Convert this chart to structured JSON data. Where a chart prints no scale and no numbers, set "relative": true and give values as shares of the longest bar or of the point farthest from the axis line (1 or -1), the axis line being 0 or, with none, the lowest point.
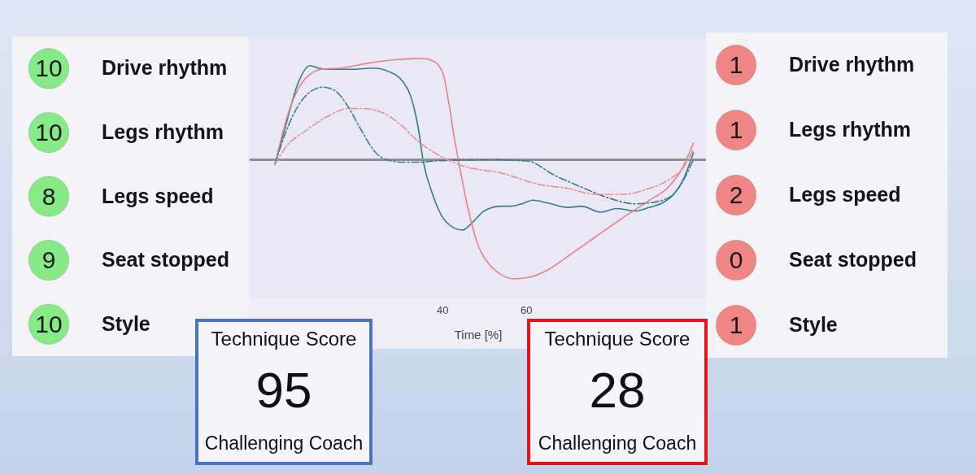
{
  "chart_data": [
    {
      "type": "other",
      "categories": [
        "Drive rhythm",
        "Legs rhythm",
        "Legs speed",
        "Seat stopped",
        "Style"
      ],
      "values": [
        10,
        10,
        8,
        9,
        10
      ],
      "color": "#86eb86",
      "data_labels": true
    },
    {
      "type": "line",
      "xlabel": "Time [%]",
      "xlim": [
        -6,
        103
      ],
      "xticks": [
        40,
        60
      ],
      "relative": true,
      "tick_labels": "x",
      "ref_lines": [
        {
          "axis": "y",
          "value": 0,
          "color": "#8e8e8e"
        }
      ],
      "series": [
        {
          "color": "#2f7f8e",
          "line_style": "solid",
          "x": [
            0,
            2.7,
            5.3,
            8.4,
            10.5,
            12.4,
            18.9,
            23.4,
            27.3,
            30.5,
            32.5,
            34.4,
            35.4,
            37.7,
            40.9,
            44.8,
            47.4,
            50,
            53.9,
            56.4,
            59,
            61.6,
            64.9,
            70,
            73.3,
            77.8,
            81.7,
            86.2,
            89.5,
            92.7,
            95.3,
            97.9,
            100
          ],
          "values": [
            -0.04,
            0.3,
            0.62,
            0.79,
            0.77,
            0.76,
            0.76,
            0.77,
            0.74,
            0.66,
            0.53,
            0.24,
            0,
            -0.29,
            -0.52,
            -0.59,
            -0.52,
            -0.43,
            -0.39,
            -0.39,
            -0.37,
            -0.34,
            -0.36,
            -0.4,
            -0.39,
            -0.44,
            -0.41,
            -0.43,
            -0.4,
            -0.36,
            -0.29,
            -0.14,
            0.06
          ]
        },
        {
          "color": "#e8817f",
          "line_style": "solid",
          "x": [
            0,
            3.4,
            6,
            8.5,
            11.1,
            15.7,
            22.1,
            28.6,
            35.1,
            38.3,
            40.3,
            41.6,
            42.9,
            44.1,
            46.1,
            48.7,
            51.3,
            53.9,
            57.1,
            60.3,
            65.5,
            70,
            76.5,
            83,
            89.5,
            94,
            97.2,
            100
          ],
          "values": [
            -0.04,
            0.41,
            0.62,
            0.72,
            0.76,
            0.77,
            0.81,
            0.84,
            0.85,
            0.82,
            0.71,
            0.47,
            0.18,
            -0.05,
            -0.4,
            -0.73,
            -0.88,
            -0.96,
            -1,
            -0.99,
            -0.92,
            -0.81,
            -0.65,
            -0.49,
            -0.34,
            -0.23,
            -0.08,
            0.14
          ]
        },
        {
          "color": "#3b7e8b",
          "line_style": "dashed",
          "x": [
            0,
            3.4,
            7.2,
            11.5,
            14.4,
            17.6,
            20.8,
            24.1,
            26.7,
            30.5,
            34.4,
            38.3,
            51.3,
            60.3,
            66.8,
            73.3,
            79.7,
            86.2,
            92.7,
            96.6,
            100
          ],
          "values": [
            -0.04,
            0.3,
            0.53,
            0.61,
            0.58,
            0.44,
            0.24,
            0.06,
            0,
            -0.02,
            -0.02,
            -0.01,
            0,
            -0.01,
            -0.13,
            -0.23,
            -0.32,
            -0.37,
            -0.34,
            -0.23,
            0
          ]
        },
        {
          "color": "#e39393",
          "line_style": "dashed",
          "x": [
            0,
            2.7,
            7.2,
            12.4,
            17.6,
            20.8,
            25.4,
            29.9,
            34.4,
            39.6,
            44.8,
            53.9,
            63.6,
            70,
            76.5,
            83,
            89.5,
            94,
            97.9,
            100
          ],
          "values": [
            -0.04,
            0.11,
            0.24,
            0.36,
            0.43,
            0.43,
            0.4,
            0.3,
            0.15,
            0.03,
            -0.05,
            -0.11,
            -0.21,
            -0.24,
            -0.29,
            -0.29,
            -0.24,
            -0.17,
            -0.05,
            0.09
          ]
        }
      ]
    },
    {
      "type": "other",
      "categories": [
        "Drive rhythm",
        "Legs rhythm",
        "Legs speed",
        "Seat stopped",
        "Style"
      ],
      "values": [
        1,
        1,
        2,
        0,
        1
      ],
      "color": "#f08585",
      "data_labels": true
    },
    {
      "type": "other",
      "title": "Technique Score",
      "values": [
        95
      ],
      "data_labels": true,
      "annotations": [
        "Challenging Coach"
      ],
      "color": "#4a74bd"
    },
    {
      "type": "other",
      "title": "Technique Score",
      "values": [
        28
      ],
      "data_labels": true,
      "annotations": [
        "Challenging Coach"
      ],
      "color": "#e3141c"
    }
  ]
}
